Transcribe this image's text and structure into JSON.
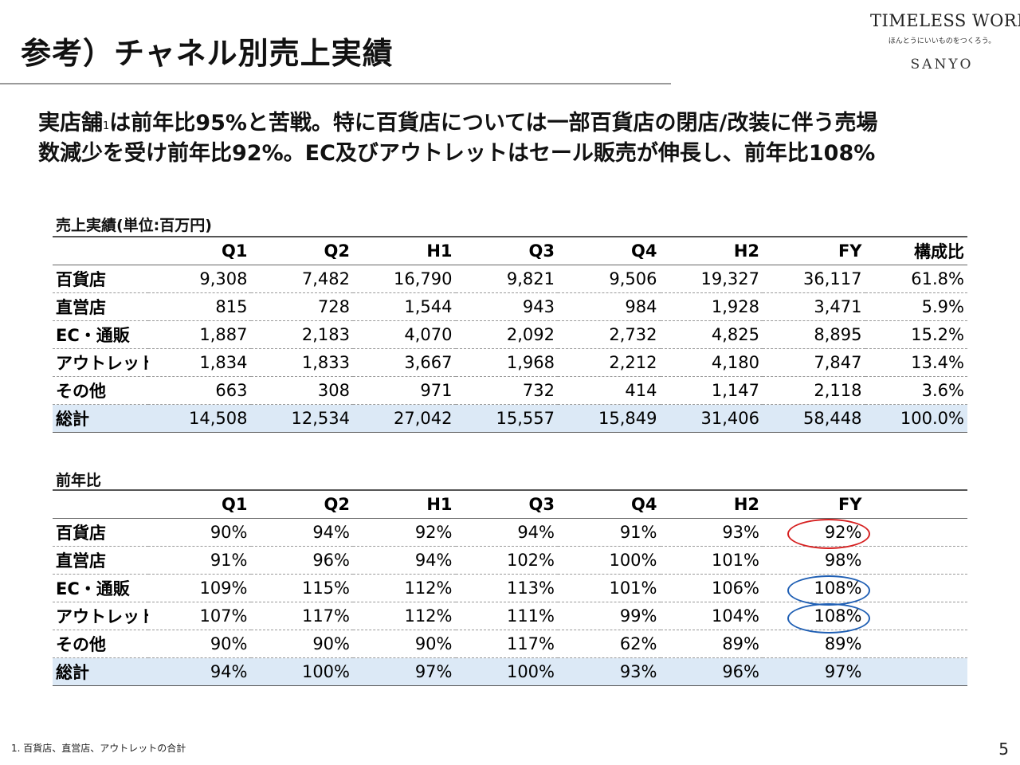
{
  "title": "参考）チャネル別売上実績",
  "logo": {
    "main": "TIMELESS WORK.",
    "sub": "ほんとうにいいものをつくろう。",
    "brand": "SANYO"
  },
  "headline": {
    "part1": "実店舗",
    "sup": "1",
    "part2": "は前年比95%と苦戦。特に百貨店については一部百貨店の閉店/改装に伴う売場",
    "line2": "数減少を受け前年比92%。EC及びアウトレットはセール販売が伸長し、前年比108%"
  },
  "sales": {
    "label": "売上実績(単位:百万円)",
    "headers": [
      "Q1",
      "Q2",
      "H1",
      "Q3",
      "Q4",
      "H2",
      "FY",
      "構成比"
    ],
    "rows": [
      {
        "name": "百貨店",
        "values": [
          "9,308",
          "7,482",
          "16,790",
          "9,821",
          "9,506",
          "19,327",
          "36,117",
          "61.8%"
        ]
      },
      {
        "name": "直営店",
        "values": [
          "815",
          "728",
          "1,544",
          "943",
          "984",
          "1,928",
          "3,471",
          "5.9%"
        ]
      },
      {
        "name": "EC・通販",
        "values": [
          "1,887",
          "2,183",
          "4,070",
          "2,092",
          "2,732",
          "4,825",
          "8,895",
          "15.2%"
        ]
      },
      {
        "name": "アウトレット",
        "values": [
          "1,834",
          "1,833",
          "3,667",
          "1,968",
          "2,212",
          "4,180",
          "7,847",
          "13.4%"
        ]
      },
      {
        "name": "その他",
        "values": [
          "663",
          "308",
          "971",
          "732",
          "414",
          "1,147",
          "2,118",
          "3.6%"
        ]
      }
    ],
    "total": {
      "name": "総計",
      "values": [
        "14,508",
        "12,534",
        "27,042",
        "15,557",
        "15,849",
        "31,406",
        "58,448",
        "100.0%"
      ]
    }
  },
  "yoy": {
    "label": "前年比",
    "headers": [
      "Q1",
      "Q2",
      "H1",
      "Q3",
      "Q4",
      "H2",
      "FY",
      ""
    ],
    "rows": [
      {
        "name": "百貨店",
        "values": [
          "90%",
          "94%",
          "92%",
          "94%",
          "91%",
          "93%",
          "92%",
          ""
        ]
      },
      {
        "name": "直営店",
        "values": [
          "91%",
          "96%",
          "94%",
          "102%",
          "100%",
          "101%",
          "98%",
          ""
        ]
      },
      {
        "name": "EC・通販",
        "values": [
          "109%",
          "115%",
          "112%",
          "113%",
          "101%",
          "106%",
          "108%",
          ""
        ]
      },
      {
        "name": "アウトレット",
        "values": [
          "107%",
          "117%",
          "112%",
          "111%",
          "99%",
          "104%",
          "108%",
          ""
        ]
      },
      {
        "name": "その他",
        "values": [
          "90%",
          "90%",
          "90%",
          "117%",
          "62%",
          "89%",
          "89%",
          ""
        ]
      }
    ],
    "total": {
      "name": "総計",
      "values": [
        "94%",
        "100%",
        "97%",
        "100%",
        "93%",
        "96%",
        "97%",
        ""
      ]
    }
  },
  "highlight_colors": {
    "red": "#d62020",
    "blue": "#1f5fb4",
    "total_row_bg": "#dce9f6"
  },
  "footnote": "1. 百貨店、直営店、アウトレットの合計",
  "page_number": "5"
}
